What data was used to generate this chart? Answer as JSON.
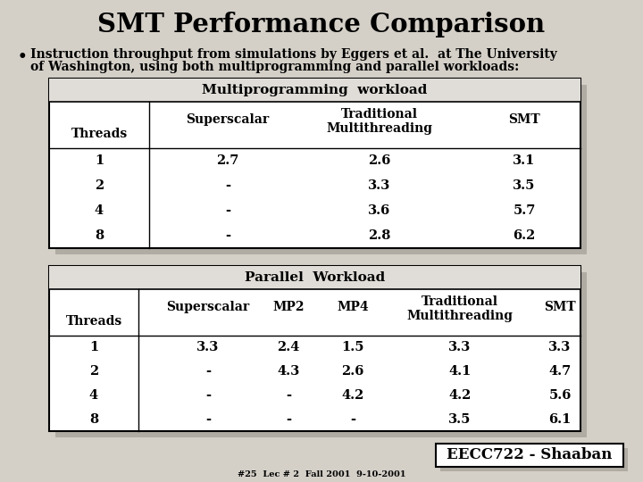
{
  "title": "SMT Performance Comparison",
  "bullet_line1": "Instruction throughput from simulations by Eggers et al.  at The University",
  "bullet_line2": "of Washington, using both multiprogramming and parallel workloads:",
  "table1_title": "Multiprogramming  workload",
  "table1_col0_label": "Threads",
  "table1_col1_label": "Superscalar",
  "table1_col2_label1": "Traditional",
  "table1_col2_label2": "Multithreading",
  "table1_col3_label": "SMT",
  "table1_rows": [
    [
      "1",
      "2.7",
      "2.6",
      "3.1"
    ],
    [
      "2",
      "-",
      "3.3",
      "3.5"
    ],
    [
      "4",
      "-",
      "3.6",
      "5.7"
    ],
    [
      "8",
      "-",
      "2.8",
      "6.2"
    ]
  ],
  "table2_title": "Parallel  Workload",
  "table2_col0_label": "Threads",
  "table2_col1_label": "Superscalar",
  "table2_col2_label": "MP2",
  "table2_col3_label": "MP4",
  "table2_col4_label1": "Traditional",
  "table2_col4_label2": "Multithreading",
  "table2_col5_label": "SMT",
  "table2_rows": [
    [
      "1",
      "3.3",
      "2.4",
      "1.5",
      "3.3",
      "3.3"
    ],
    [
      "2",
      "-",
      "4.3",
      "2.6",
      "4.1",
      "4.7"
    ],
    [
      "4",
      "-",
      "-",
      "4.2",
      "4.2",
      "5.6"
    ],
    [
      "8",
      "-",
      "-",
      "-",
      "3.5",
      "6.1"
    ]
  ],
  "footer_box": "EECC722 - Shaaban",
  "footer_sub": "#25  Lec # 2  Fall 2001  9-10-2001",
  "bg_color": "#d4d0c8",
  "table_bg": "#ffffff",
  "shadow_color": "#b0aca4"
}
